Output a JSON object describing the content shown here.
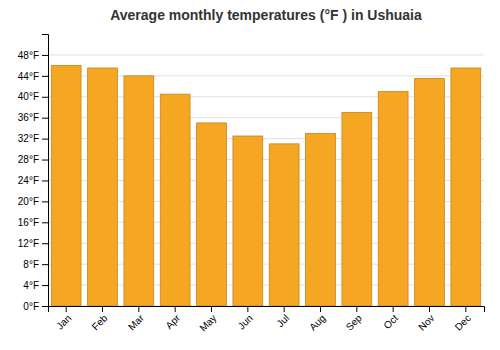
{
  "chart_data": {
    "type": "bar",
    "title": "Average monthly temperatures (°F ) in Ushuaia",
    "categories": [
      "Jan",
      "Feb",
      "Mar",
      "Apr",
      "May",
      "Jun",
      "Jul",
      "Aug",
      "Sep",
      "Oct",
      "Nov",
      "Dec"
    ],
    "values": [
      46,
      45.5,
      44,
      40.5,
      35,
      32.5,
      31,
      33,
      37,
      41,
      43.5,
      45.5
    ],
    "color": "#F5A623",
    "ylim": [
      0,
      52
    ],
    "yticks": [
      {
        "value": 0,
        "label": "0°F"
      },
      {
        "value": 4,
        "label": "4°F"
      },
      {
        "value": 8,
        "label": "8°F"
      },
      {
        "value": 12,
        "label": "12°F"
      },
      {
        "value": 16,
        "label": "16°F"
      },
      {
        "value": 20,
        "label": "20°F"
      },
      {
        "value": 24,
        "label": "24°F"
      },
      {
        "value": 28,
        "label": "28°F"
      },
      {
        "value": 32,
        "label": "32°F"
      },
      {
        "value": 36,
        "label": "36°F"
      },
      {
        "value": 40,
        "label": "40°F"
      },
      {
        "value": 44,
        "label": "44°F"
      },
      {
        "value": 48,
        "label": "48°F"
      }
    ],
    "grid": true
  }
}
